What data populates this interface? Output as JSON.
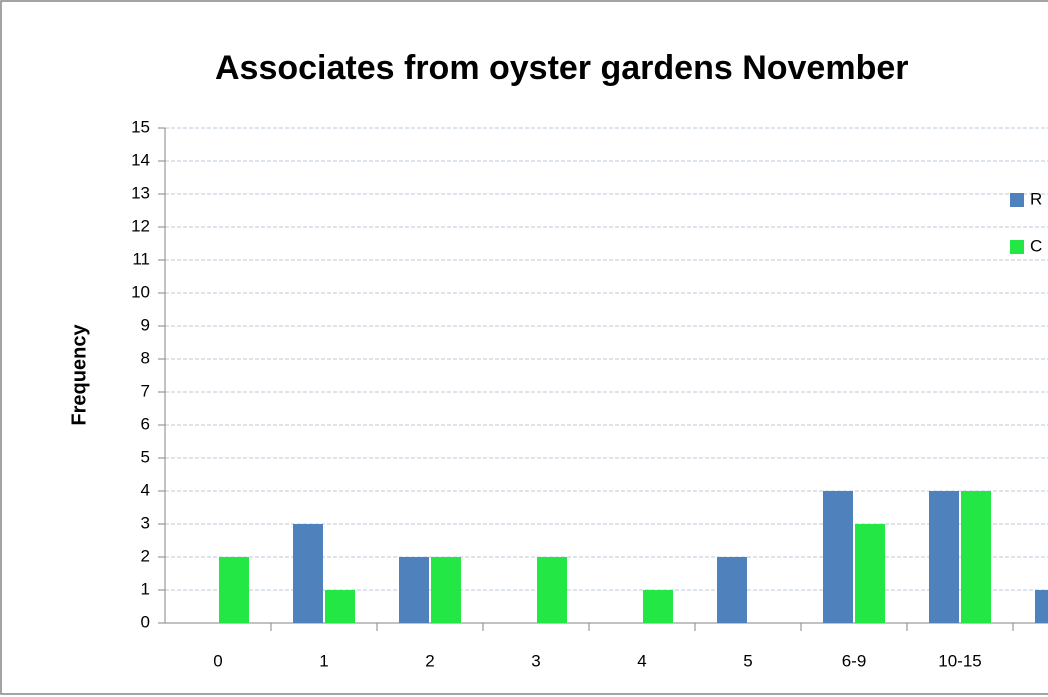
{
  "chart_data": {
    "type": "bar",
    "title": "Associates from oyster gardens November",
    "y_label": "Frequency",
    "categories": [
      "0",
      "1",
      "2",
      "3",
      "4",
      "5",
      "6-9",
      "10-15",
      null
    ],
    "series": [
      {
        "name": "R",
        "color": "#4f81bd",
        "values": [
          null,
          3,
          2,
          null,
          null,
          2,
          4,
          4,
          1
        ]
      },
      {
        "name": "C",
        "color": "#22e744",
        "values": [
          2,
          1,
          2,
          2,
          1,
          null,
          3,
          4,
          null
        ]
      }
    ],
    "ylim": [
      0,
      15
    ],
    "yticks": [
      0,
      1,
      2,
      3,
      4,
      5,
      6,
      7,
      8,
      9,
      10,
      11,
      12,
      13,
      14,
      15
    ],
    "grid": true,
    "legend": "right"
  }
}
